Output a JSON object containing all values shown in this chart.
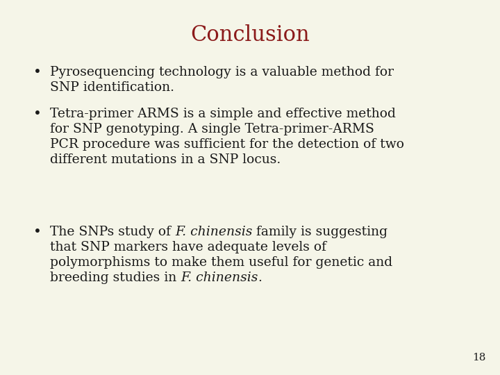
{
  "background_color": "#f5f5e8",
  "title": "Conclusion",
  "title_color": "#8b1a1a",
  "title_fontsize": 22,
  "title_font": "DejaVu Serif",
  "text_color": "#1a1a1a",
  "text_fontsize": 13.5,
  "text_font": "DejaVu Serif",
  "slide_number": "18",
  "slide_number_fontsize": 11,
  "bullet1": "Pyrosequencing technology is a valuable method for SNP identification.",
  "bullet2": "Tetra-primer ARMS is a simple and effective method for SNP genotyping. A single Tetra-primer-ARMS PCR procedure was sufficient for the detection of two different mutations in a SNP locus.",
  "bullet3_lines": [
    [
      [
        "The SNPs study of ",
        false
      ],
      [
        "F. chinensis",
        true
      ],
      [
        " family is suggesting",
        false
      ]
    ],
    [
      [
        "that SNP markers have adequate levels of",
        false
      ]
    ],
    [
      [
        "polymorphisms to make them useful for genetic and",
        false
      ]
    ],
    [
      [
        "breeding studies in ",
        false
      ],
      [
        "F. chinensis",
        true
      ],
      [
        ".",
        false
      ]
    ]
  ],
  "b1_lines": [
    "Pyrosequencing technology is a valuable method for",
    "SNP identification."
  ],
  "b2_lines": [
    "Tetra-primer ARMS is a simple and effective method",
    "for SNP genotyping. A single Tetra-primer-ARMS",
    "PCR procedure was sufficient for the detection of two",
    "different mutations in a SNP locus."
  ]
}
